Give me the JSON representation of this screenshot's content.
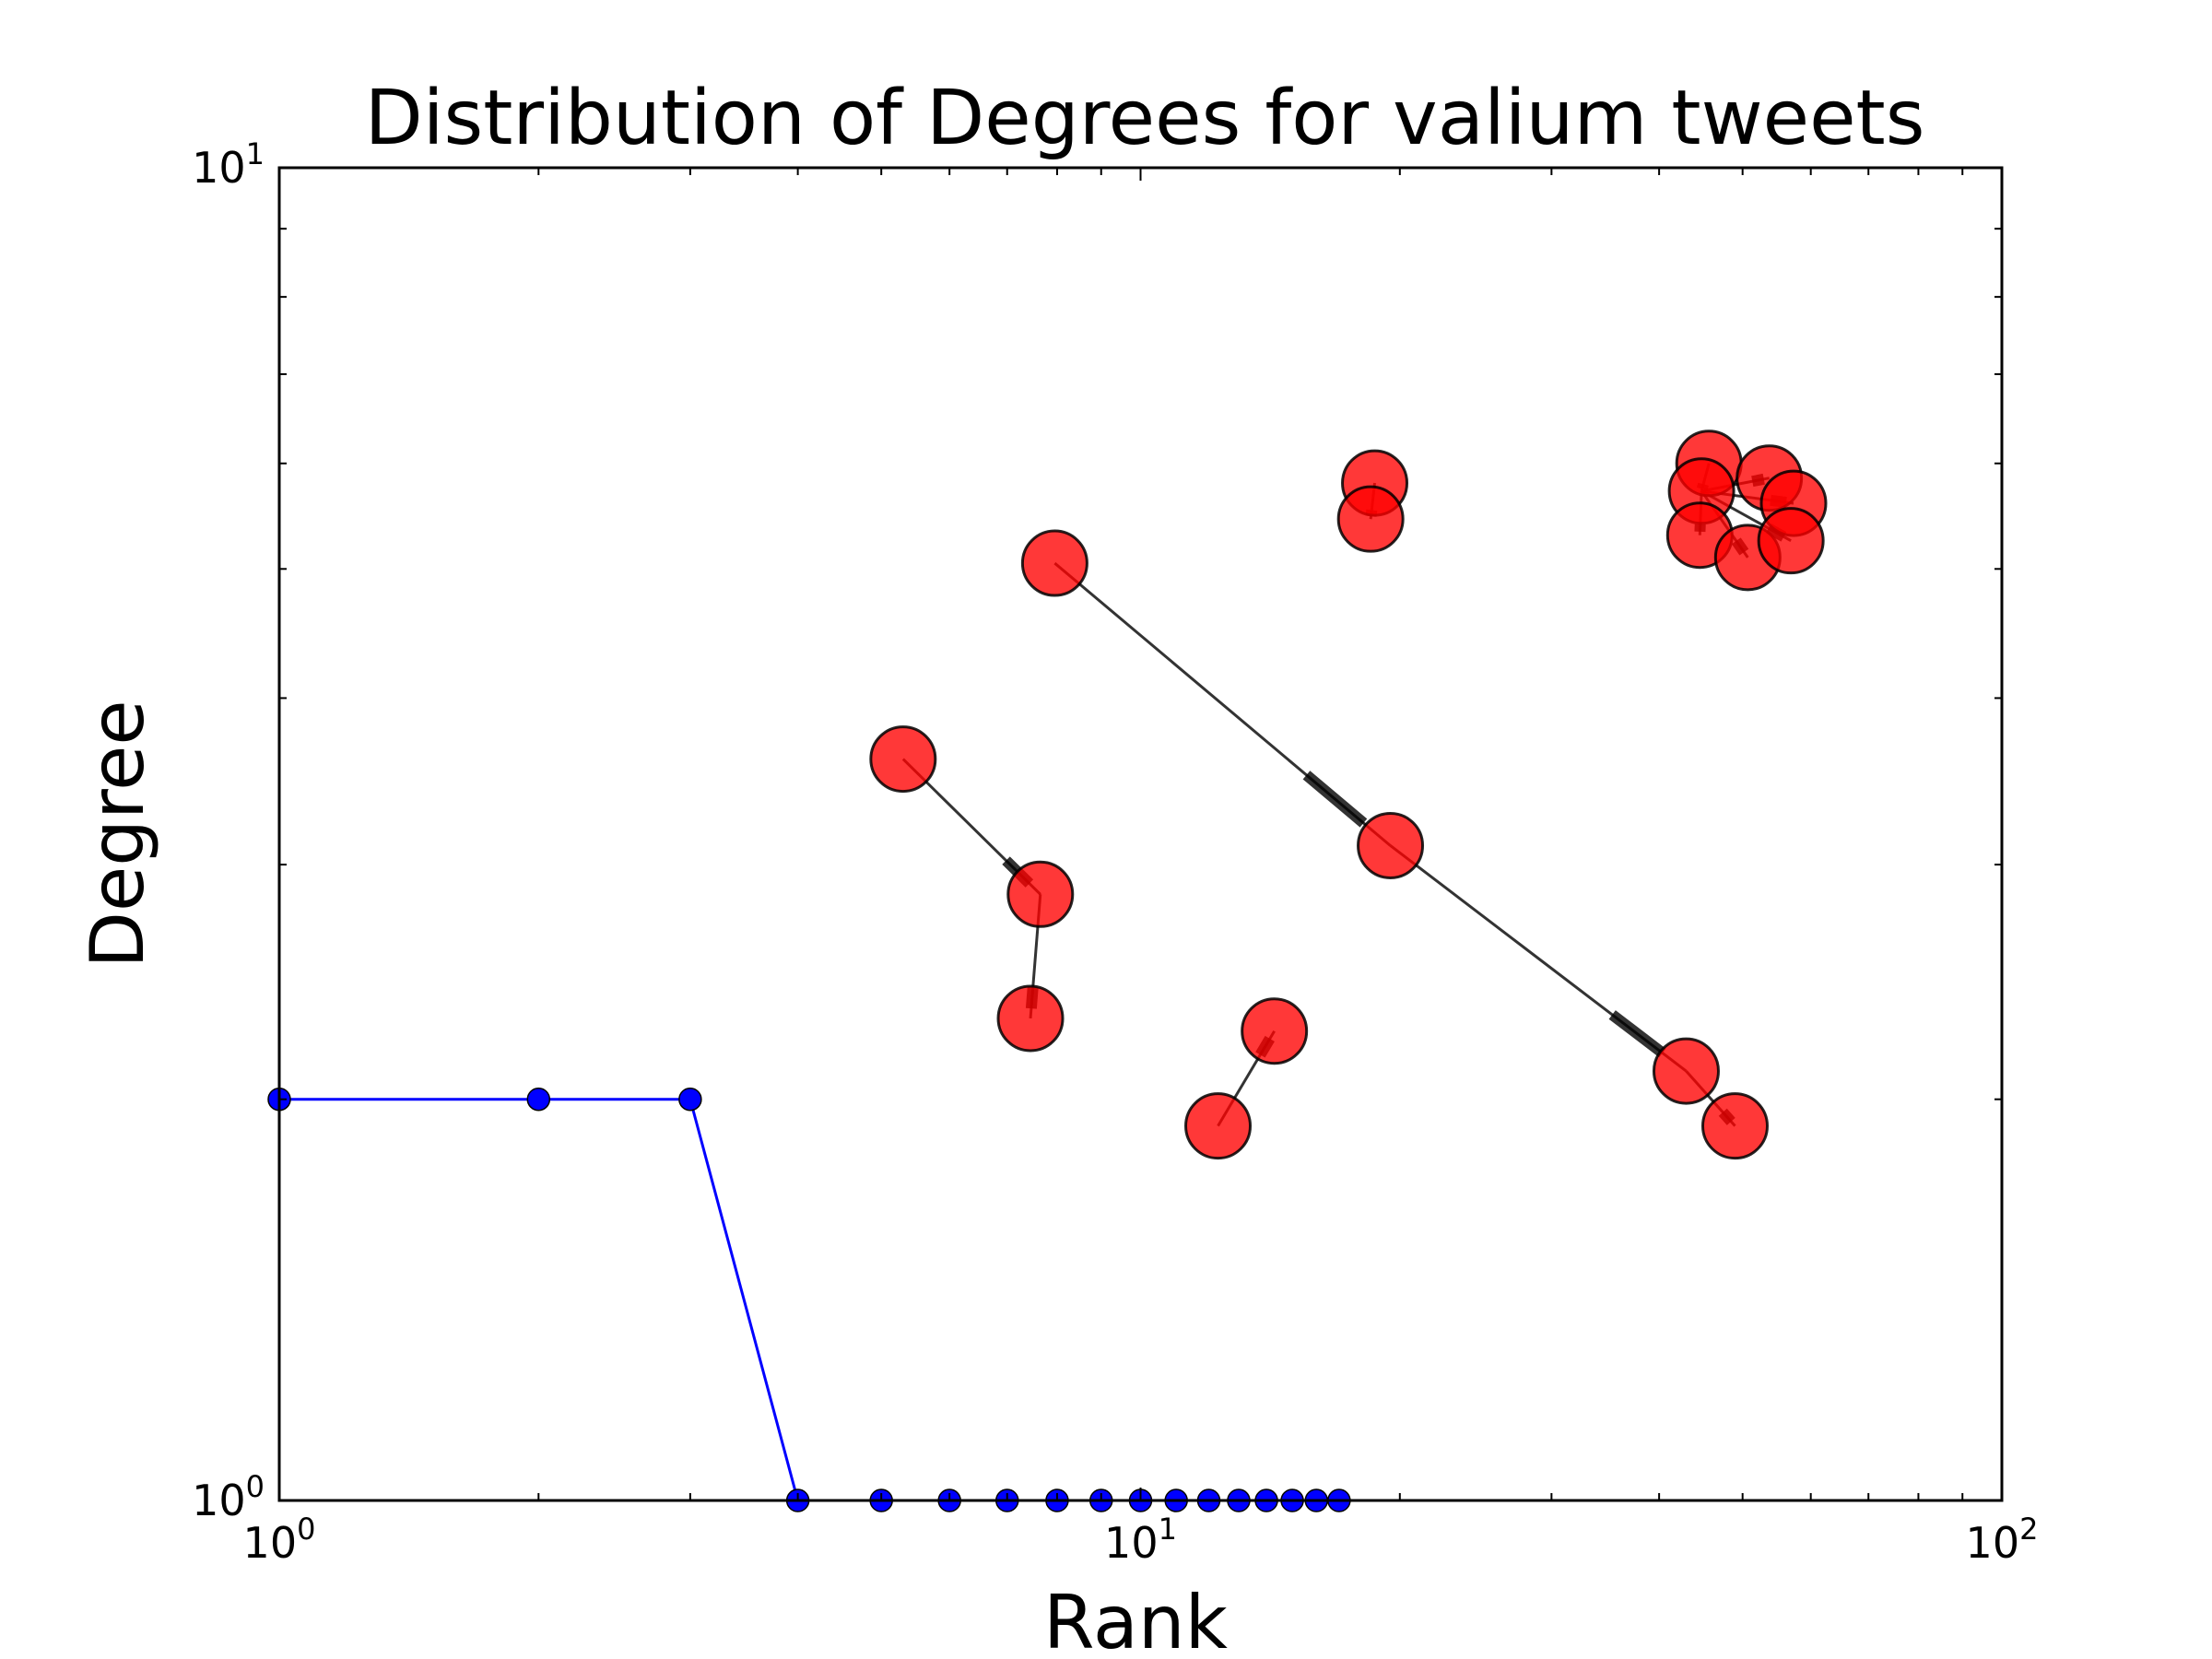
{
  "chart_data": {
    "type": "line",
    "title": "Distribution of Degrees for valium tweets",
    "xlabel": "Rank",
    "ylabel": "Degree",
    "xscale": "log",
    "yscale": "log",
    "xlim": [
      1,
      100
    ],
    "ylim": [
      1,
      10
    ],
    "x_ticks": [
      {
        "value": 1,
        "base": "10",
        "exp": "0"
      },
      {
        "value": 10,
        "base": "10",
        "exp": "1"
      },
      {
        "value": 100,
        "base": "10",
        "exp": "2"
      }
    ],
    "y_ticks": [
      {
        "value": 1,
        "base": "10",
        "exp": "0"
      },
      {
        "value": 10,
        "base": "10",
        "exp": "1"
      }
    ],
    "grid": false,
    "legend": "none",
    "series": [
      {
        "x": [
          1,
          2,
          3,
          4,
          5,
          6,
          7,
          8,
          9,
          10,
          11,
          12,
          13,
          14,
          15,
          16,
          17
        ],
        "y": [
          2,
          2,
          2,
          1,
          1,
          1,
          1,
          1,
          1,
          1,
          1,
          1,
          1,
          1,
          1,
          1,
          1
        ],
        "color": "#0000ff",
        "marker": "circle"
      }
    ],
    "network_overlay": {
      "node_color": "#ff0000",
      "edge_color": "#000000",
      "nodes": [
        {
          "id": "a",
          "x": 5.3,
          "y": 3.6
        },
        {
          "id": "b",
          "x": 7.65,
          "y": 2.85
        },
        {
          "id": "c",
          "x": 7.45,
          "y": 2.3
        },
        {
          "id": "d",
          "x": 7.95,
          "y": 5.05
        },
        {
          "id": "e",
          "x": 19.5,
          "y": 3.1
        },
        {
          "id": "f",
          "x": 43,
          "y": 2.1
        },
        {
          "id": "g",
          "x": 49,
          "y": 1.91
        },
        {
          "id": "h",
          "x": 12.3,
          "y": 1.91
        },
        {
          "id": "i",
          "x": 14.3,
          "y": 2.25
        },
        {
          "id": "j",
          "x": 18.7,
          "y": 5.8
        },
        {
          "id": "k",
          "x": 18.5,
          "y": 5.45
        },
        {
          "id": "l",
          "x": 45.7,
          "y": 6.0
        },
        {
          "id": "m",
          "x": 53.7,
          "y": 5.85
        },
        {
          "id": "n",
          "x": 44.8,
          "y": 5.72
        },
        {
          "id": "o",
          "x": 57.3,
          "y": 5.6
        },
        {
          "id": "p",
          "x": 44.6,
          "y": 5.3
        },
        {
          "id": "q",
          "x": 50.7,
          "y": 5.1
        },
        {
          "id": "r",
          "x": 56.9,
          "y": 5.25
        }
      ],
      "edges": [
        [
          "a",
          "b"
        ],
        [
          "b",
          "c"
        ],
        [
          "d",
          "e"
        ],
        [
          "e",
          "f"
        ],
        [
          "f",
          "g"
        ],
        [
          "h",
          "i"
        ],
        [
          "j",
          "k"
        ],
        [
          "l",
          "n"
        ],
        [
          "n",
          "m"
        ],
        [
          "n",
          "o"
        ],
        [
          "n",
          "p"
        ],
        [
          "n",
          "q"
        ],
        [
          "n",
          "r"
        ]
      ]
    }
  }
}
